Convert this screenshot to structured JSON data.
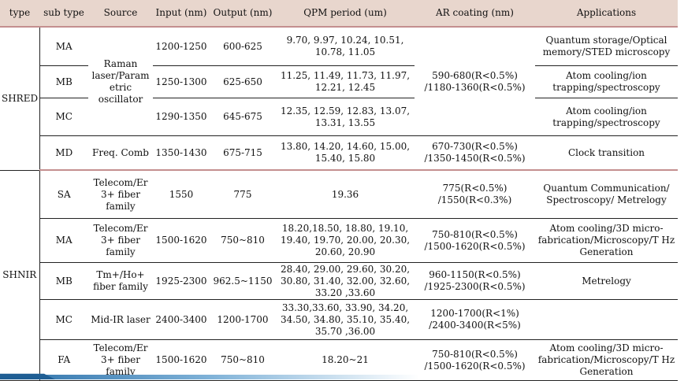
{
  "headers": [
    "type",
    "sub type",
    "Source",
    "Input (nm)",
    "Output (nm)",
    "QPM period (um)",
    "AR coating  (nm)",
    "Applications"
  ],
  "shred": {
    "type": "SHRED",
    "source_raman": "Raman laser/Param etric oscillator",
    "ar_shared": "590-680(R<0.5%) /1180-1360(R<0.5%)",
    "rows": [
      {
        "sub": "MA",
        "input": "1200-1250",
        "output": "600-625",
        "qpm": "9.70, 9.97, 10.24, 10.51, 10.78, 11.05",
        "app": "Quantum storage/Optical memory/STED microscopy"
      },
      {
        "sub": "MB",
        "input": "1250-1300",
        "output": "625-650",
        "qpm": "11.25, 11.49, 11.73, 11.97, 12.21, 12.45",
        "app": "Atom cooling/ion trapping/spectroscopy"
      },
      {
        "sub": "MC",
        "input": "1290-1350",
        "output": "645-675",
        "qpm": "12.35, 12.59, 12.83, 13.07, 13.31, 13.55",
        "app": "Atom cooling/ion trapping/spectroscopy"
      },
      {
        "sub": "MD",
        "source": "Freq. Comb",
        "input": "1350-1430",
        "output": "675-715",
        "qpm": "13.80, 14.20, 14.60, 15.00, 15.40, 15.80",
        "ar": "670-730(R<0.5%) /1350-1450(R<0.5%)",
        "app": "Clock transition"
      }
    ]
  },
  "shnir": {
    "type": "SHNIR",
    "rows": [
      {
        "sub": "SA",
        "source": "Telecom/Er 3+ fiber family",
        "input": "1550",
        "output": "775",
        "qpm": "19.36",
        "ar": "775(R<0.5%) /1550(R<0.3%)",
        "app": "Quantum Communication/ Spectroscopy/ Metrelogy"
      },
      {
        "sub": "MA",
        "source": "Telecom/Er 3+ fiber family",
        "input": "1500-1620",
        "output": "750~810",
        "qpm": "18.20,18.50, 18.80, 19.10, 19.40, 19.70, 20.00, 20.30, 20.60, 20.90",
        "ar": "750-810(R<0.5%) /1500-1620(R<0.5%)",
        "app": "Atom cooling/3D micro-fabrication/Microscopy/T Hz Generation"
      },
      {
        "sub": "MB",
        "source": "Tm+/Ho+ fiber family",
        "input": "1925-2300",
        "output": "962.5~1150",
        "qpm": "28.40, 29.00, 29.60, 30.20, 30.80, 31.40, 32.00, 32.60, 33.20 ,33.60",
        "ar": "960-1150(R<0.5%) /1925-2300(R<0.5%)",
        "app": "Metrelogy"
      },
      {
        "sub": "MC",
        "source": "Mid-IR laser",
        "input": "2400-3400",
        "output": "1200-1700",
        "qpm": "33.30,33.60, 33.90, 34.20, 34.50, 34.80, 35.10, 35.40, 35.70 ,36.00",
        "ar": "1200-1700(R<1%) /2400-3400(R<5%)",
        "app": ""
      },
      {
        "sub": "FA",
        "source": "Telecom/Er 3+ fiber family",
        "input": "1500-1620",
        "output": "750~810",
        "qpm": "18.20~21",
        "ar": "750-810(R<0.5%) /1500-1620(R<0.5%)",
        "app": "Atom cooling/3D micro-fabrication/Microscopy/T Hz Generation"
      }
    ]
  }
}
